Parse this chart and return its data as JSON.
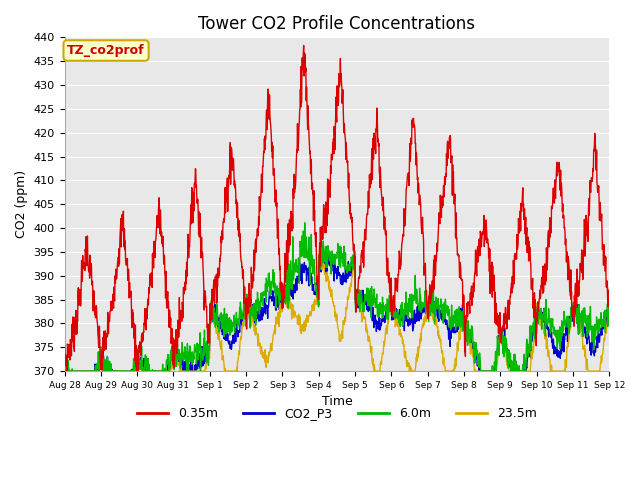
{
  "title": "Tower CO2 Profile Concentrations",
  "xlabel": "Time",
  "ylabel": "CO2 (ppm)",
  "ylim": [
    370,
    440
  ],
  "yticks": [
    370,
    375,
    380,
    385,
    390,
    395,
    400,
    405,
    410,
    415,
    420,
    425,
    430,
    435,
    440
  ],
  "annotation_text": "TZ_co2prof",
  "annotation_color": "#cc0000",
  "annotation_bg": "#ffffcc",
  "annotation_border": "#ccaa00",
  "series": {
    "0.35m": {
      "color": "#dd0000",
      "lw": 1.0
    },
    "CO2_P3": {
      "color": "#0000cc",
      "lw": 1.0
    },
    "6.0m": {
      "color": "#00bb00",
      "lw": 1.0
    },
    "23.5m": {
      "color": "#ddaa00",
      "lw": 1.0
    }
  },
  "plot_bg_color": "#e8e8e8",
  "grid_color": "#ffffff",
  "title_fontsize": 12,
  "label_fontsize": 9,
  "tick_fontsize": 8
}
